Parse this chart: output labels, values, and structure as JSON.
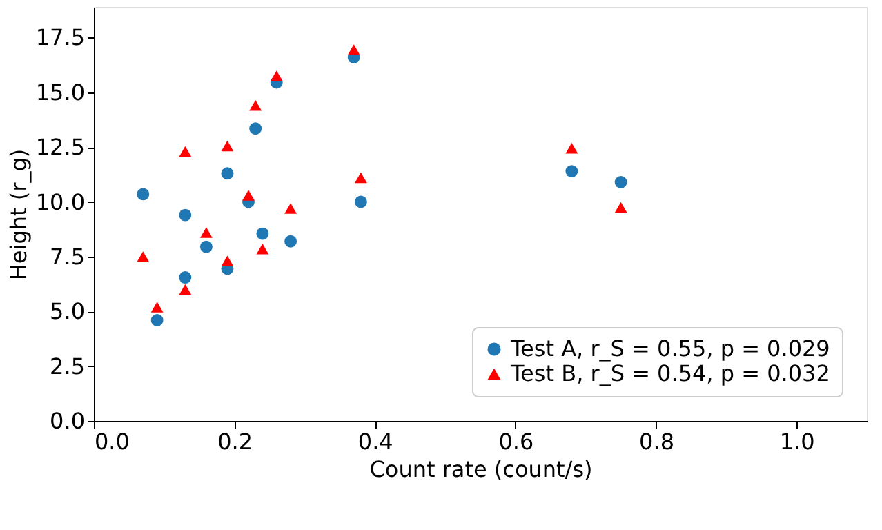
{
  "chart_data": {
    "type": "scatter",
    "xlabel": "Count rate (count/s)",
    "ylabel": "Height (r_g)",
    "x": [
      0.07,
      0.09,
      0.13,
      0.13,
      0.16,
      0.19,
      0.19,
      0.22,
      0.23,
      0.24,
      0.26,
      0.28,
      0.37,
      0.38,
      0.68,
      0.75
    ],
    "series": [
      {
        "name": "Test A, r_S = 0.55, p = 0.029",
        "color": "#1f77b4",
        "marker": "circle",
        "values": [
          10.35,
          4.6,
          9.4,
          6.55,
          7.95,
          11.3,
          6.95,
          10.0,
          13.35,
          8.55,
          15.45,
          8.2,
          16.6,
          10.0,
          11.4,
          10.9
        ]
      },
      {
        "name": "Test B, r_S = 0.54, p = 0.032",
        "color": "#ff0000",
        "marker": "triangle",
        "values": [
          7.5,
          5.2,
          12.3,
          6.0,
          8.6,
          12.55,
          7.3,
          10.3,
          14.4,
          7.85,
          15.75,
          9.7,
          16.95,
          11.1,
          12.45,
          9.75
        ]
      }
    ],
    "xlim": [
      0.0,
      1.1
    ],
    "xticks": [
      {
        "value": 0,
        "label": "0.0"
      },
      {
        "value": 0.2,
        "label": "0.2"
      },
      {
        "value": 0.4,
        "label": "0.4"
      },
      {
        "value": 0.6,
        "label": "0.6"
      },
      {
        "value": 0.8,
        "label": "0.8"
      },
      {
        "value": 1,
        "label": "1.0"
      }
    ],
    "ylim": [
      0,
      18.9
    ],
    "yticks": [
      {
        "value": 0,
        "label": "0.0"
      },
      {
        "value": 2.5,
        "label": "2.5"
      },
      {
        "value": 5,
        "label": "5.0"
      },
      {
        "value": 7.5,
        "label": "7.5"
      },
      {
        "value": 10,
        "label": "10.0"
      },
      {
        "value": 12.5,
        "label": "12.5"
      },
      {
        "value": 15,
        "label": "15.0"
      },
      {
        "value": 17.5,
        "label": "17.5"
      }
    ],
    "grid": false,
    "legend": "bottom right"
  }
}
